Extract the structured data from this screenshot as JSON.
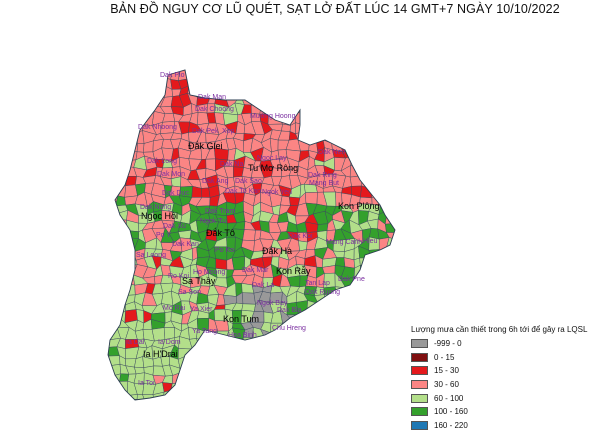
{
  "title": "BẢN ĐỒ NGUY CƠ LŨ QUÉT, SẠT LỞ ĐẤT LÚC 14 GMT+7 NGÀY 10/10/2022",
  "legend": {
    "title": "Lượng mưa cần thiết trong 6h tới để gây ra LQSL",
    "items": [
      {
        "label": "-999 - 0",
        "color": "#999999"
      },
      {
        "label": "0 - 15",
        "color": "#7f0f10"
      },
      {
        "label": "15 - 30",
        "color": "#e4191c"
      },
      {
        "label": "30 - 60",
        "color": "#fb8584"
      },
      {
        "label": "60 - 100",
        "color": "#b3df8a"
      },
      {
        "label": "100 - 160",
        "color": "#34a02c"
      },
      {
        "label": "160 - 220",
        "color": "#1f78b4"
      }
    ]
  },
  "districts": [
    "Đắk Glei",
    "Tu Mơ Rông",
    "Kon Plông",
    "Ngọc Hồi",
    "Đắk Tô",
    "Đắk Hà",
    "Kon Rẫy",
    "Sa Thầy",
    "Kon Tum",
    "Ia H'Drai"
  ],
  "communes": [
    "Dak Plo",
    "Dak Man",
    "Dak Choong",
    "Mường Hoong",
    "Dak Nhoong",
    "Dak Pek",
    "Xop",
    "Dak Nen",
    "Ngoc Lay",
    "Dak Long",
    "Dak Na",
    "Dak Ring",
    "Mang But",
    "Dak Mon",
    "Dak Ang",
    "Dak Sao",
    "Dak Duc",
    "Dak To Kan",
    "Ngok Yeu",
    "Dak Nong",
    "Dak Tram",
    "Ngok Tu",
    "Dak Xu",
    "Po Y",
    "Dak Kan",
    "Sa Loong",
    "Po Ko",
    "Mang Canh",
    "Hieu",
    "Dak Koi",
    "Dak Mar",
    "Dak Pne",
    "Ro Koi",
    "Ho Moong",
    "Tan Lap",
    "Dak Ruong",
    "Sa Son",
    "Dak La",
    "Ngok Bay",
    "Dak Bla",
    "Chu Hreng",
    "Hoa Binh",
    "Mo Rai",
    "Ya Xier",
    "Ia Dal",
    "Ia Dom",
    "Ia Toi",
    "Ya Tang"
  ]
}
